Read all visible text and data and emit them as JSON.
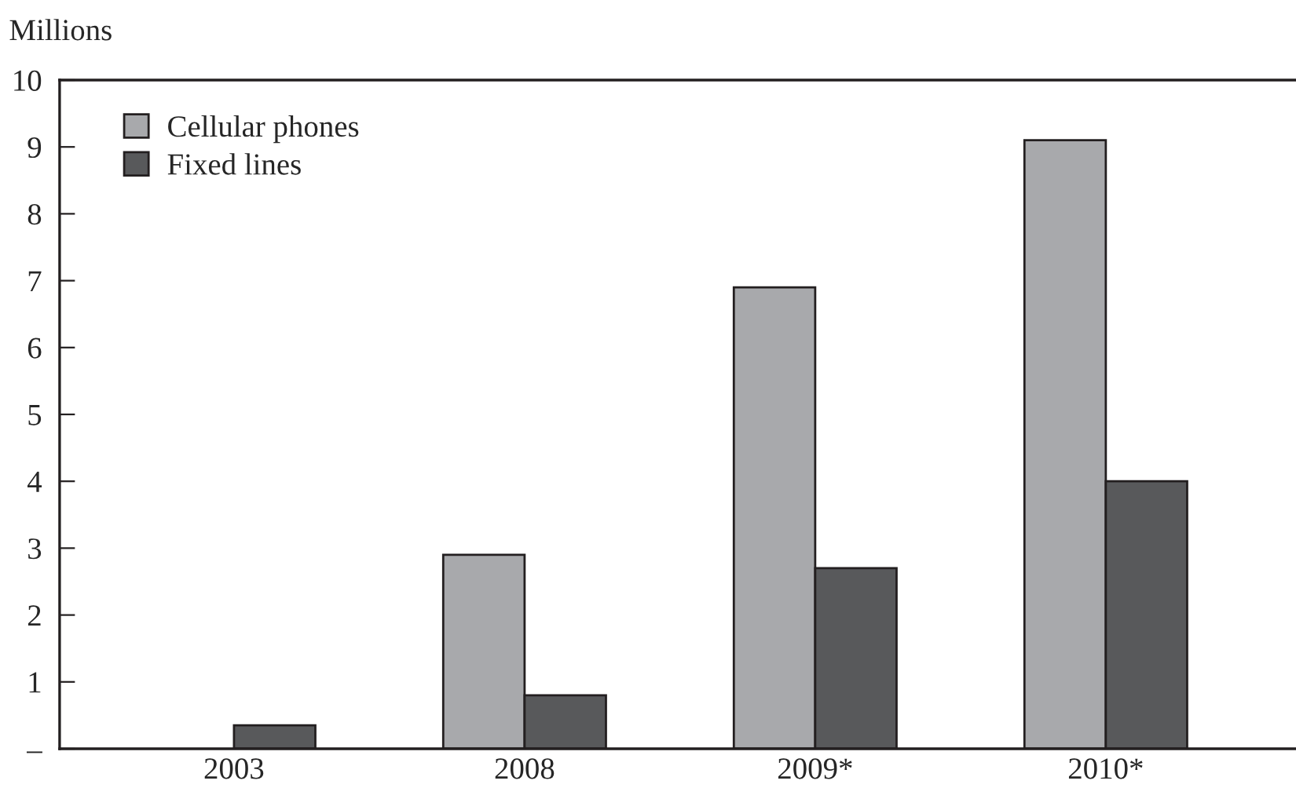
{
  "chart_data": {
    "type": "bar",
    "ylabel": "Millions",
    "categories": [
      "2003",
      "2008",
      "2009*",
      "2010*"
    ],
    "series": [
      {
        "name": "Cellular phones",
        "color": "#a8a9ac",
        "values": [
          null,
          2.9,
          6.9,
          9.1
        ]
      },
      {
        "name": "Fixed lines",
        "color": "#58595b",
        "values": [
          0.35,
          0.8,
          2.7,
          4.0
        ]
      }
    ],
    "ylim": [
      0,
      10
    ],
    "yticks": [
      {
        "value": 0,
        "label": "–"
      },
      1,
      2,
      3,
      4,
      5,
      6,
      7,
      8,
      9,
      10
    ],
    "grid": false,
    "legend": "top left"
  }
}
